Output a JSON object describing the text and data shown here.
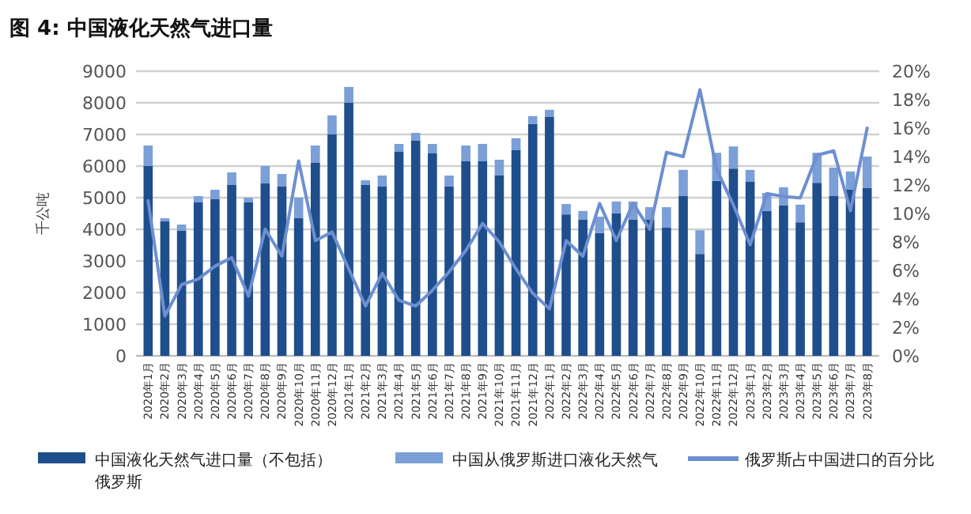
{
  "chart_data": {
    "type": "bar",
    "title": "图 4:  中国液化天然气进口量",
    "ylabel": "千公吨",
    "stacked": true,
    "legend": "bottom",
    "grid": "y",
    "categories": [
      "2020年1月",
      "2020年2月",
      "2020年3月",
      "2020年4月",
      "2020年5月",
      "2020年6月",
      "2020年7月",
      "2020年8月",
      "2020年9月",
      "2020年10月",
      "2020年11月",
      "2020年12月",
      "2021年1月",
      "2021年2月",
      "2021年3月",
      "2021年4月",
      "2021年5月",
      "2021年6月",
      "2021年7月",
      "2021年8月",
      "2021年9月",
      "2021年10月",
      "2021年11月",
      "2021年12月",
      "2022年1月",
      "2022年2月",
      "2022年3月",
      "2022年4月",
      "2022年5月",
      "2022年6月",
      "2022年7月",
      "2022年8月",
      "2022年9月",
      "2022年10月",
      "2022年11月",
      "2022年12月",
      "2023年1月",
      "2023年2月",
      "2023年3月",
      "2023年4月",
      "2023年5月",
      "2023年6月",
      "2023年7月",
      "2023年8月"
    ],
    "ylim": [
      0,
      9000
    ],
    "yticks": [
      0,
      1000,
      2000,
      3000,
      4000,
      5000,
      6000,
      7000,
      8000,
      9000
    ],
    "y2lim": [
      0,
      20
    ],
    "y2ticks": [
      {
        "value": 0,
        "label": "0%"
      },
      {
        "value": 2,
        "label": "2%"
      },
      {
        "value": 4,
        "label": "4%"
      },
      {
        "value": 6,
        "label": "6%"
      },
      {
        "value": 8,
        "label": "8%"
      },
      {
        "value": 10,
        "label": "10%"
      },
      {
        "value": 12,
        "label": "12%"
      },
      {
        "value": 14,
        "label": "14%"
      },
      {
        "value": 16,
        "label": "16%"
      },
      {
        "value": 18,
        "label": "18%"
      },
      {
        "value": 20,
        "label": "20%"
      }
    ],
    "series": [
      {
        "name": "中国液化天然气进口量（不包括）俄罗斯",
        "color": "#1f4e8c",
        "values": [
          6000,
          4250,
          3950,
          4850,
          4950,
          5400,
          4850,
          5450,
          5350,
          4350,
          6100,
          7000,
          8000,
          5400,
          5350,
          6450,
          6800,
          6400,
          5350,
          6150,
          6150,
          5700,
          6500,
          7330,
          7550,
          4470,
          4300,
          3880,
          4500,
          4300,
          4300,
          4050,
          5050,
          3220,
          5530,
          5920,
          5500,
          4580,
          4750,
          4220,
          5470,
          5050,
          5250,
          5300
        ]
      },
      {
        "name": "中国从俄罗斯进口液化天然气",
        "color": "#7b9fd6",
        "values": [
          650,
          100,
          200,
          200,
          300,
          400,
          150,
          550,
          400,
          650,
          550,
          600,
          500,
          150,
          350,
          250,
          250,
          300,
          350,
          500,
          550,
          500,
          380,
          250,
          230,
          330,
          280,
          520,
          380,
          580,
          400,
          650,
          830,
          750,
          890,
          700,
          380,
          570,
          580,
          560,
          950,
          900,
          580,
          1000
        ]
      },
      {
        "name": "俄罗斯占中国进口的百分比",
        "color": "#6d8fd0",
        "type": "line",
        "axis": "y2",
        "marker": "none",
        "line_style": "solid",
        "values": [
          10.9,
          2.8,
          5.0,
          5.4,
          6.3,
          6.9,
          4.2,
          8.9,
          7.0,
          13.7,
          8.1,
          8.7,
          6.1,
          3.5,
          5.8,
          3.9,
          3.5,
          4.6,
          5.9,
          7.4,
          9.3,
          8.0,
          6.1,
          4.4,
          3.3,
          8.1,
          7.0,
          10.7,
          8.1,
          10.7,
          8.9,
          14.3,
          14.0,
          18.7,
          13.1,
          10.6,
          7.8,
          11.4,
          11.2,
          11.1,
          14.1,
          14.4,
          10.2,
          16.0
        ]
      }
    ]
  }
}
